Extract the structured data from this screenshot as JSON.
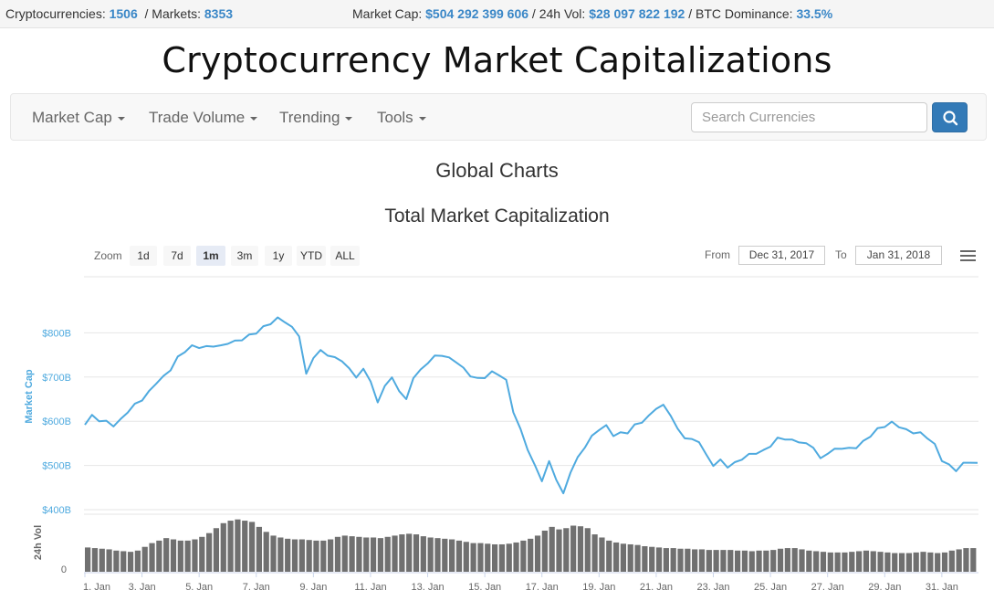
{
  "topbar": {
    "cryptocurrencies_label": "Cryptocurrencies:",
    "cryptocurrencies_value": "1506",
    "markets_label": "/ Markets:",
    "markets_value": "8353",
    "market_cap_label": "Market Cap:",
    "market_cap_value": "$504 292 399 606",
    "vol_label": "/ 24h Vol:",
    "vol_value": "$28 097 822 192",
    "dominance_label": "/ BTC Dominance:",
    "dominance_value": "33.5%"
  },
  "site_title": "Cryptocurrency Market Capitalizations",
  "nav": {
    "items": [
      {
        "label": "Market Cap"
      },
      {
        "label": "Trade Volume"
      },
      {
        "label": "Trending"
      },
      {
        "label": "Tools"
      }
    ],
    "search_placeholder": "Search Currencies",
    "search_icon": "search-icon"
  },
  "page_heading": "Global Charts",
  "chart_controls": {
    "zoom_label": "Zoom",
    "zoom_buttons": [
      "1d",
      "7d",
      "1m",
      "3m",
      "1y",
      "YTD",
      "ALL"
    ],
    "active_zoom": "1m",
    "from_label": "From",
    "from_value": "Dec 31, 2017",
    "to_label": "To",
    "to_value": "Jan 31, 2018",
    "menu_icon": "hamburger-menu-icon"
  },
  "colors": {
    "line": "#4faadf",
    "volume_bars": "#707070",
    "accent": "#3a87c7",
    "search_button": "#337ab7"
  },
  "chart_data": {
    "type": "line",
    "title": "Total Market Capitalization",
    "ylabel": "Market Cap",
    "ylim": [
      400,
      900
    ],
    "yticks": [
      "$400B",
      "$500B",
      "$600B",
      "$700B",
      "$800B"
    ],
    "xticks": [
      "1. Jan",
      "3. Jan",
      "5. Jan",
      "7. Jan",
      "9. Jan",
      "11. Jan",
      "13. Jan",
      "15. Jan",
      "17. Jan",
      "19. Jan",
      "21. Jan",
      "23. Jan",
      "25. Jan",
      "27. Jan",
      "29. Jan",
      "31. Jan"
    ],
    "grid": true,
    "series": [
      {
        "unit": "billion USD",
        "points": [
          [
            0,
            592
          ],
          [
            0.25,
            612
          ],
          [
            0.5,
            605
          ],
          [
            0.75,
            600
          ],
          [
            1.0,
            592
          ],
          [
            1.25,
            605
          ],
          [
            1.5,
            622
          ],
          [
            1.75,
            635
          ],
          [
            2.0,
            648
          ],
          [
            2.25,
            665
          ],
          [
            2.5,
            685
          ],
          [
            2.75,
            700
          ],
          [
            3.0,
            720
          ],
          [
            3.25,
            745
          ],
          [
            3.5,
            760
          ],
          [
            3.75,
            772
          ],
          [
            4.0,
            768
          ],
          [
            4.25,
            765
          ],
          [
            4.5,
            770
          ],
          [
            4.75,
            768
          ],
          [
            5.0,
            775
          ],
          [
            5.25,
            780
          ],
          [
            5.5,
            788
          ],
          [
            5.75,
            795
          ],
          [
            6.0,
            802
          ],
          [
            6.25,
            815
          ],
          [
            6.5,
            822
          ],
          [
            6.75,
            830
          ],
          [
            7.0,
            825
          ],
          [
            7.25,
            810
          ],
          [
            7.5,
            792
          ],
          [
            7.75,
            705
          ],
          [
            8.0,
            748
          ],
          [
            8.25,
            760
          ],
          [
            8.5,
            752
          ],
          [
            8.75,
            745
          ],
          [
            9.0,
            738
          ],
          [
            9.25,
            715
          ],
          [
            9.5,
            700
          ],
          [
            9.75,
            715
          ],
          [
            10.0,
            690
          ],
          [
            10.25,
            640
          ],
          [
            10.5,
            685
          ],
          [
            10.75,
            698
          ],
          [
            11.0,
            672
          ],
          [
            11.25,
            650
          ],
          [
            11.5,
            700
          ],
          [
            11.75,
            712
          ],
          [
            12.0,
            732
          ],
          [
            12.25,
            745
          ],
          [
            12.5,
            748
          ],
          [
            12.75,
            742
          ],
          [
            13.0,
            738
          ],
          [
            13.25,
            720
          ],
          [
            13.5,
            705
          ],
          [
            13.75,
            698
          ],
          [
            14.0,
            700
          ],
          [
            14.25,
            708
          ],
          [
            14.5,
            705
          ],
          [
            14.75,
            690
          ],
          [
            15.0,
            620
          ],
          [
            15.25,
            580
          ],
          [
            15.5,
            540
          ],
          [
            15.75,
            500
          ],
          [
            16.0,
            468
          ],
          [
            16.25,
            510
          ],
          [
            16.5,
            470
          ],
          [
            16.75,
            432
          ],
          [
            17.0,
            485
          ],
          [
            17.25,
            515
          ],
          [
            17.5,
            540
          ],
          [
            17.75,
            565
          ],
          [
            18.0,
            585
          ],
          [
            18.25,
            590
          ],
          [
            18.5,
            570
          ],
          [
            18.75,
            575
          ],
          [
            19.0,
            575
          ],
          [
            19.25,
            588
          ],
          [
            19.5,
            598
          ],
          [
            19.75,
            610
          ],
          [
            20.0,
            628
          ],
          [
            20.25,
            635
          ],
          [
            20.5,
            618
          ],
          [
            20.75,
            582
          ],
          [
            21.0,
            565
          ],
          [
            21.25,
            560
          ],
          [
            21.5,
            555
          ],
          [
            21.75,
            520
          ],
          [
            22.0,
            500
          ],
          [
            22.25,
            510
          ],
          [
            22.5,
            495
          ],
          [
            22.75,
            505
          ],
          [
            23.0,
            518
          ],
          [
            23.25,
            525
          ],
          [
            23.5,
            530
          ],
          [
            23.75,
            535
          ],
          [
            24.0,
            545
          ],
          [
            24.25,
            558
          ],
          [
            24.5,
            560
          ],
          [
            24.75,
            555
          ],
          [
            25.0,
            552
          ],
          [
            25.25,
            548
          ],
          [
            25.5,
            545
          ],
          [
            25.75,
            515
          ],
          [
            26.0,
            530
          ],
          [
            26.25,
            538
          ],
          [
            26.5,
            540
          ],
          [
            26.75,
            535
          ],
          [
            27.0,
            540
          ],
          [
            27.25,
            552
          ],
          [
            27.5,
            565
          ],
          [
            27.75,
            582
          ],
          [
            28.0,
            592
          ],
          [
            28.25,
            598
          ],
          [
            28.5,
            590
          ],
          [
            28.75,
            582
          ],
          [
            29.0,
            575
          ],
          [
            29.25,
            570
          ],
          [
            29.5,
            562
          ],
          [
            29.75,
            545
          ],
          [
            30.0,
            510
          ],
          [
            30.25,
            500
          ],
          [
            30.5,
            492
          ],
          [
            30.75,
            505
          ],
          [
            31.0,
            510
          ],
          [
            31.25,
            506
          ]
        ]
      }
    ],
    "volume_panel": {
      "ylabel": "24h Vol",
      "ytick": "0",
      "values": [
        0.39,
        0.38,
        0.37,
        0.36,
        0.34,
        0.33,
        0.32,
        0.34,
        0.4,
        0.46,
        0.5,
        0.54,
        0.52,
        0.5,
        0.5,
        0.52,
        0.56,
        0.62,
        0.7,
        0.78,
        0.82,
        0.84,
        0.82,
        0.8,
        0.72,
        0.64,
        0.58,
        0.55,
        0.53,
        0.52,
        0.52,
        0.51,
        0.5,
        0.5,
        0.52,
        0.56,
        0.58,
        0.57,
        0.56,
        0.55,
        0.55,
        0.54,
        0.56,
        0.58,
        0.6,
        0.61,
        0.6,
        0.57,
        0.55,
        0.54,
        0.53,
        0.52,
        0.5,
        0.48,
        0.46,
        0.46,
        0.45,
        0.44,
        0.44,
        0.45,
        0.47,
        0.5,
        0.53,
        0.58,
        0.66,
        0.72,
        0.68,
        0.7,
        0.74,
        0.73,
        0.7,
        0.6,
        0.55,
        0.5,
        0.47,
        0.45,
        0.44,
        0.43,
        0.41,
        0.4,
        0.39,
        0.38,
        0.38,
        0.37,
        0.37,
        0.36,
        0.36,
        0.35,
        0.35,
        0.35,
        0.35,
        0.34,
        0.34,
        0.33,
        0.34,
        0.34,
        0.35,
        0.37,
        0.38,
        0.38,
        0.36,
        0.34,
        0.33,
        0.32,
        0.31,
        0.31,
        0.31,
        0.32,
        0.33,
        0.34,
        0.33,
        0.32,
        0.31,
        0.3,
        0.3,
        0.3,
        0.31,
        0.32,
        0.31,
        0.3,
        0.31,
        0.34,
        0.36,
        0.38,
        0.38
      ]
    }
  }
}
